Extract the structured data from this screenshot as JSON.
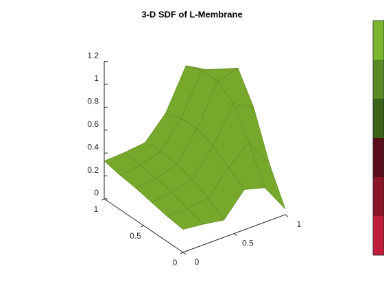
{
  "chart_data": {
    "type": "surface3d",
    "title": "3-D SDF of L-Membrane",
    "x": [
      0,
      0.2,
      0.4,
      0.6,
      0.8,
      1
    ],
    "y": [
      0,
      0.2,
      0.4,
      0.6,
      0.8,
      1
    ],
    "z": [
      [
        0.2,
        0.18,
        0.15,
        0.35,
        0.3,
        0.05
      ],
      [
        0.22,
        0.22,
        0.25,
        0.45,
        0.6,
        0.35
      ],
      [
        0.25,
        0.27,
        0.32,
        0.55,
        0.85,
        0.75
      ],
      [
        0.28,
        0.3,
        0.36,
        0.6,
        0.95,
        1.0
      ],
      [
        0.3,
        0.32,
        0.38,
        0.6,
        0.95,
        0.9
      ],
      [
        0.33,
        0.34,
        0.36,
        0.55,
        0.9,
        0.8
      ]
    ],
    "color": "#77a82c",
    "xlim": [
      0,
      1
    ],
    "xticks": [
      0,
      0.5,
      1
    ],
    "ylim": [
      0,
      1
    ],
    "yticks": [
      0,
      0.5,
      1
    ],
    "zlim": [
      0,
      1.2
    ],
    "zticks": [
      0,
      0.2,
      0.4,
      0.6,
      0.8,
      1,
      1.2
    ],
    "colorbar": [
      "#7cb82f",
      "#5a8a24",
      "#3a6218",
      "#5a0d1a",
      "#8a1428",
      "#c01c3c"
    ]
  }
}
